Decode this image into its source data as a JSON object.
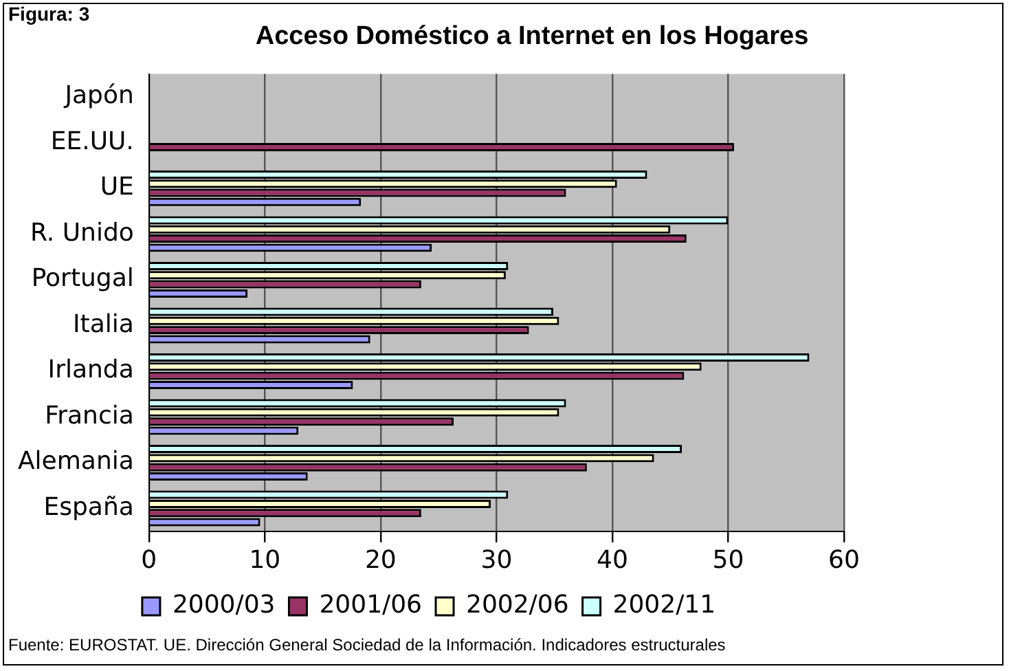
{
  "chart_data": {
    "type": "bar",
    "orientation": "horizontal",
    "title": "Acceso Doméstico a Internet en los Hogares",
    "annotations": [
      "Figura: 3",
      "Fuente: EUROSTAT. UE. Dirección General Sociedad de la Información. Indicadores estructurales"
    ],
    "categories": [
      "Japón",
      "EE.UU.",
      "UE",
      "R. Unido",
      "Portugal",
      "Italia",
      "Irlanda",
      "Francia",
      "Alemania",
      "España"
    ],
    "series": [
      {
        "name": "2000/03",
        "color": "#9999ff",
        "values": [
          null,
          null,
          18.3,
          24.4,
          8.5,
          19.1,
          17.6,
          12.9,
          13.7,
          9.6
        ]
      },
      {
        "name": "2001/06",
        "color": "#993366",
        "values": [
          null,
          50.5,
          36.0,
          46.4,
          23.5,
          32.8,
          46.2,
          26.3,
          37.8,
          23.5
        ]
      },
      {
        "name": "2002/06",
        "color": "#ffffcc",
        "values": [
          null,
          null,
          40.4,
          45.0,
          30.8,
          35.4,
          47.7,
          35.4,
          43.6,
          29.5
        ]
      },
      {
        "name": "2002/11",
        "color": "#ccffff",
        "values": [
          null,
          null,
          43.0,
          50.0,
          31.0,
          34.9,
          57.0,
          36.0,
          46.0,
          31.0
        ]
      }
    ],
    "xlim": [
      0,
      60
    ],
    "xticks": [
      0,
      10,
      20,
      30,
      40,
      50,
      60
    ],
    "grid": "x",
    "legend": "bottom"
  }
}
